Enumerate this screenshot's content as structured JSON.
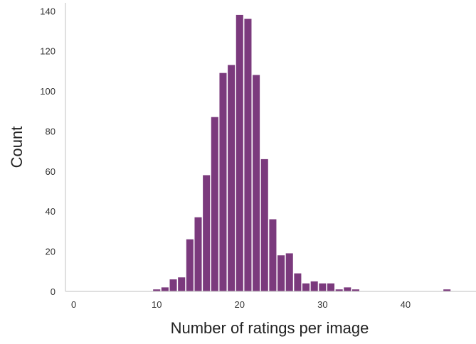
{
  "chart_data": {
    "type": "bar",
    "title": "",
    "xlabel": "Number of ratings per image",
    "ylabel": "Count",
    "xlim": [
      -1,
      48.5
    ],
    "ylim": [
      0,
      144
    ],
    "xticks": [
      0,
      10,
      20,
      30,
      40
    ],
    "yticks": [
      0,
      20,
      40,
      60,
      80,
      100,
      120,
      140
    ],
    "grid": false,
    "bar_color": "#7b3a7d",
    "bins": [
      {
        "x": 10,
        "count": 1
      },
      {
        "x": 11,
        "count": 2
      },
      {
        "x": 12,
        "count": 6
      },
      {
        "x": 13,
        "count": 7
      },
      {
        "x": 14,
        "count": 26
      },
      {
        "x": 15,
        "count": 37
      },
      {
        "x": 16,
        "count": 58
      },
      {
        "x": 17,
        "count": 87
      },
      {
        "x": 18,
        "count": 109
      },
      {
        "x": 19,
        "count": 113
      },
      {
        "x": 20,
        "count": 138
      },
      {
        "x": 21,
        "count": 136
      },
      {
        "x": 22,
        "count": 108
      },
      {
        "x": 23,
        "count": 66
      },
      {
        "x": 24,
        "count": 36
      },
      {
        "x": 25,
        "count": 18
      },
      {
        "x": 26,
        "count": 19
      },
      {
        "x": 27,
        "count": 9
      },
      {
        "x": 28,
        "count": 4
      },
      {
        "x": 29,
        "count": 5
      },
      {
        "x": 30,
        "count": 4
      },
      {
        "x": 31,
        "count": 4
      },
      {
        "x": 32,
        "count": 1
      },
      {
        "x": 33,
        "count": 2
      },
      {
        "x": 34,
        "count": 1
      },
      {
        "x": 45,
        "count": 1
      }
    ]
  }
}
